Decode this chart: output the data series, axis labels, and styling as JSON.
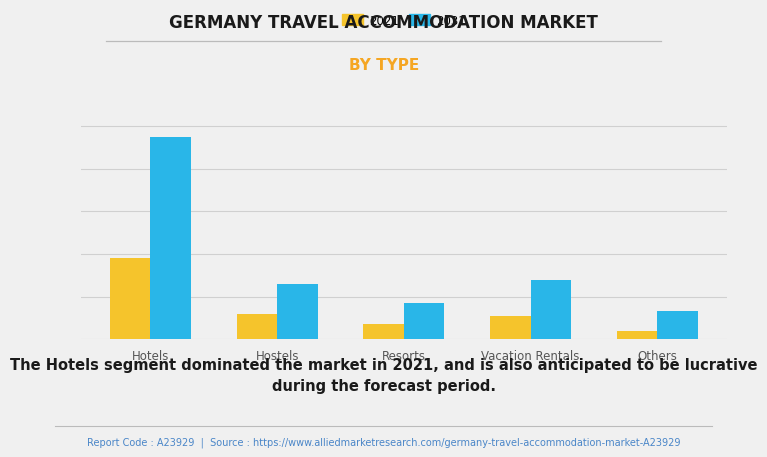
{
  "title": "GERMANY TRAVEL ACCOMMODATION MARKET",
  "subtitle": "BY TYPE",
  "categories": [
    "Hotels",
    "Hostels",
    "Resorts",
    "Vacation Rentals",
    "Others"
  ],
  "series": [
    {
      "label": "2021",
      "color": "#F5C42C",
      "values": [
        38,
        12,
        7,
        11,
        4
      ]
    },
    {
      "label": "2031",
      "color": "#29B6E8",
      "values": [
        95,
        26,
        17,
        28,
        13
      ]
    }
  ],
  "ylim": [
    0,
    110
  ],
  "background_color": "#f0f0f0",
  "plot_bg_color": "#f0f0f0",
  "title_fontsize": 12,
  "subtitle_fontsize": 11,
  "subtitle_color": "#F5A623",
  "grid_color": "#d0d0d0",
  "annotation_text": "The Hotels segment dominated the market in 2021, and is also anticipated to be lucrative\nduring the forecast period.",
  "footer_text": "Report Code : A23929  |  Source : https://www.alliedmarketresearch.com/germany-travel-accommodation-market-A23929",
  "footer_color": "#4a86c8",
  "annotation_fontsize": 10.5,
  "footer_fontsize": 7,
  "bar_width": 0.32,
  "tick_color": "#555555",
  "tick_fontsize": 8.5
}
